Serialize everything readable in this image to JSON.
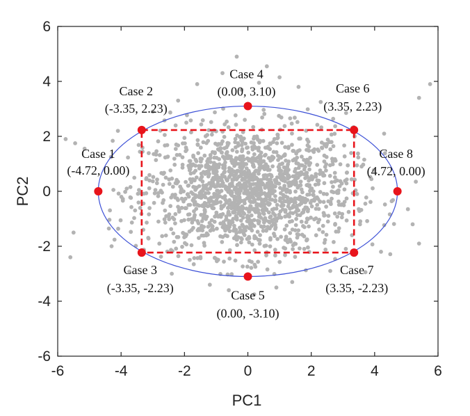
{
  "chart_data": {
    "type": "scatter",
    "xlabel": "PC1",
    "ylabel": "PC2",
    "xlim": [
      -6,
      6
    ],
    "ylim": [
      -6,
      6
    ],
    "xticks": [
      -6,
      -4,
      -2,
      0,
      2,
      4,
      6
    ],
    "yticks": [
      -6,
      -4,
      -2,
      0,
      2,
      4,
      6
    ],
    "grid": false,
    "colors": {
      "scatter": "#b3b3b3",
      "ellipse": "#3b4fd6",
      "rectangle": "#e8141b",
      "cases": "#e8141b"
    },
    "ellipse": {
      "center": [
        0,
        0
      ],
      "semi_axes": [
        4.72,
        3.1
      ]
    },
    "rectangle": {
      "x": [
        -3.35,
        3.35
      ],
      "y": [
        -2.23,
        2.23
      ]
    },
    "cases": [
      {
        "name": "Case 1",
        "label": "(-4.72, 0.00)",
        "x": -4.72,
        "y": 0.0
      },
      {
        "name": "Case 2",
        "label": "(-3.35, 2.23)",
        "x": -3.35,
        "y": 2.23
      },
      {
        "name": "Case 3",
        "label": "(-3.35, -2.23)",
        "x": -3.35,
        "y": -2.23
      },
      {
        "name": "Case 4",
        "label": "(0.00, 3.10)",
        "x": 0.0,
        "y": 3.1
      },
      {
        "name": "Case 5",
        "label": "(0.00, -3.10)",
        "x": 0.0,
        "y": -3.1
      },
      {
        "name": "Case 6",
        "label": "(3.35, 2.23)",
        "x": 3.35,
        "y": 2.23
      },
      {
        "name": "Case 7",
        "label": "(3.35, -2.23)",
        "x": 3.35,
        "y": -2.23
      },
      {
        "name": "Case 8",
        "label": "(4.72, 0.00)",
        "x": 4.72,
        "y": 0.0
      }
    ],
    "scatter_points": [
      [
        -0.35,
        4.9
      ],
      [
        0.6,
        4.55
      ],
      [
        -0.8,
        4.3
      ],
      [
        1.0,
        4.15
      ],
      [
        -1.6,
        3.9
      ],
      [
        1.6,
        3.8
      ],
      [
        -0.2,
        3.7
      ],
      [
        0.35,
        3.95
      ],
      [
        5.75,
        3.9
      ],
      [
        5.4,
        3.4
      ],
      [
        -5.45,
        1.75
      ],
      [
        -5.15,
        1.55
      ],
      [
        -5.75,
        1.9
      ],
      [
        -5.5,
        -1.5
      ],
      [
        -5.6,
        -2.4
      ],
      [
        5.2,
        -1.2
      ],
      [
        5.4,
        -1.9
      ],
      [
        5.05,
        -0.65
      ],
      [
        5.3,
        0.35
      ],
      [
        -1.2,
        -3.4
      ],
      [
        1.4,
        -3.3
      ],
      [
        -0.6,
        -3.6
      ],
      [
        0.9,
        -3.5
      ],
      [
        -2.4,
        -3.0
      ],
      [
        2.6,
        -2.9
      ],
      [
        0.2,
        -3.75
      ],
      [
        -4.1,
        2.2
      ],
      [
        4.3,
        2.1
      ],
      [
        -4.3,
        -2.0
      ],
      [
        4.2,
        -2.2
      ],
      [
        -2.2,
        3.3
      ],
      [
        2.3,
        3.25
      ],
      [
        -3.0,
        2.9
      ],
      [
        3.1,
        2.85
      ]
    ],
    "cloud": {
      "count": 1600,
      "sd": [
        1.65,
        1.15
      ],
      "bound": [
        4.65,
        3.05
      ]
    }
  }
}
